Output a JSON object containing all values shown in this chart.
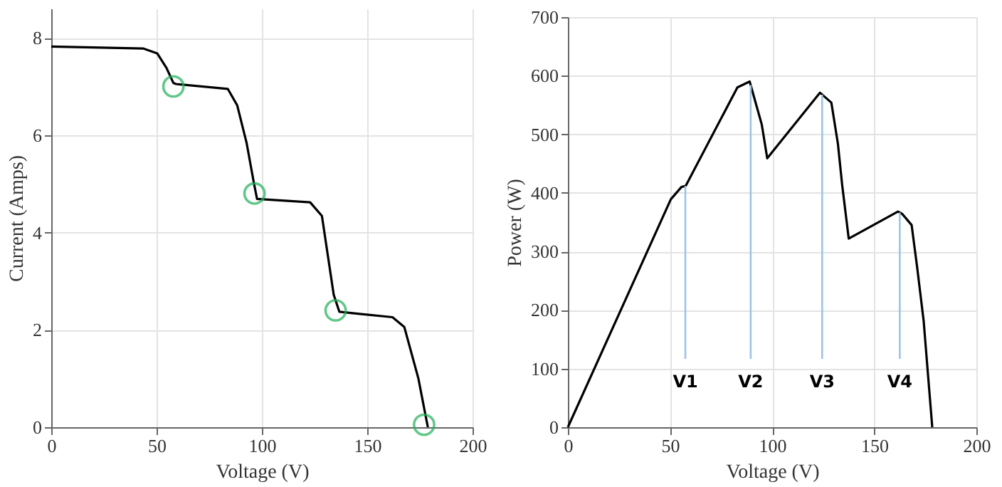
{
  "chart_data": [
    {
      "type": "line",
      "xlabel": "Voltage (V)",
      "ylabel": "Current (Amps)",
      "xlim": [
        0,
        200
      ],
      "ylim": [
        0,
        8.6
      ],
      "xticks": [
        0,
        50,
        100,
        150,
        200
      ],
      "yticks": [
        0,
        2,
        4,
        6,
        8
      ],
      "grid": true,
      "series": [
        {
          "type": "line",
          "color": "#000000",
          "x": [
            0,
            43.6,
            50.3,
            54.7,
            58,
            59.2,
            83.8,
            88.3,
            92.7,
            96.1,
            97.7,
            122.9,
            128.5,
            134.1,
            136.8,
            162,
            167.6,
            174.3,
            177.7,
            178.8
          ],
          "values": [
            7.82,
            7.78,
            7.68,
            7.38,
            7.07,
            7.05,
            6.95,
            6.61,
            5.85,
            5.04,
            4.69,
            4.62,
            4.34,
            2.72,
            2.37,
            2.26,
            2.06,
            1.0,
            0.24,
            0
          ]
        },
        {
          "type": "scatter",
          "marker": "circle",
          "color": "#22b05a",
          "x": [
            58,
            96.5,
            135,
            177
          ],
          "values": [
            7.0,
            4.8,
            2.4,
            0.05
          ]
        }
      ]
    },
    {
      "type": "line",
      "xlabel": "Voltage (V)",
      "ylabel": "Power (W)",
      "xlim": [
        0,
        200
      ],
      "ylim": [
        0,
        700
      ],
      "xticks": [
        0,
        50,
        100,
        150,
        200
      ],
      "yticks": [
        0,
        100,
        200,
        300,
        400,
        500,
        600,
        700
      ],
      "grid": true,
      "series": [
        {
          "type": "line",
          "color": "#000000",
          "x": [
            0,
            50.4,
            55.6,
            57.7,
            83,
            89,
            94.9,
            97.6,
            123.4,
            129,
            132.2,
            134.3,
            137.5,
            161.6,
            163.7,
            168.3,
            171,
            174.2,
            176.3,
            178.4
          ],
          "values": [
            0,
            389,
            410,
            412,
            580,
            590,
            517,
            459,
            571,
            554,
            484,
            413,
            322,
            368,
            364,
            345,
            273,
            181,
            90,
            0
          ]
        }
      ],
      "ref_lines": [
        {
          "axis": "x",
          "value": 57.5,
          "label": "V1",
          "color": "#9dc3e6"
        },
        {
          "axis": "x",
          "value": 89.5,
          "label": "V2",
          "color": "#9dc3e6"
        },
        {
          "axis": "x",
          "value": 124.5,
          "label": "V3",
          "color": "#9dc3e6"
        },
        {
          "axis": "x",
          "value": 162.5,
          "label": "V4",
          "color": "#9dc3e6"
        }
      ]
    }
  ]
}
